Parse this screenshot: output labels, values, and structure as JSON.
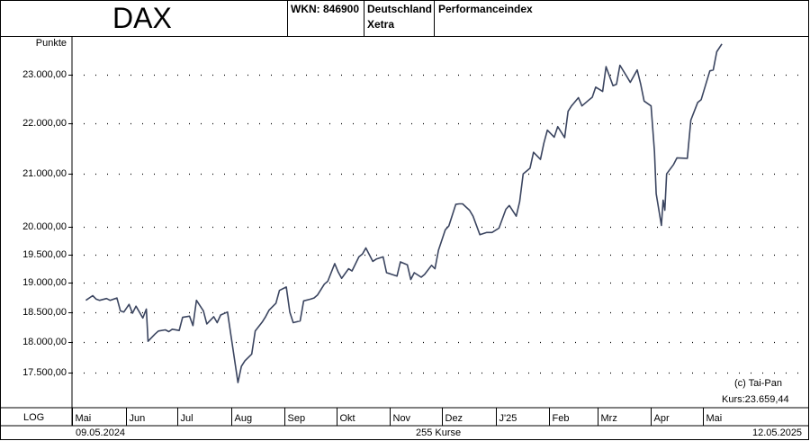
{
  "header": {
    "title": "DAX",
    "wkn": "WKN: 846900",
    "country": "Deutschland",
    "exchange": "Xetra",
    "index_type": "Performanceindex"
  },
  "chart_data": {
    "type": "line",
    "ylabel": "Punkte",
    "y_scale": "log",
    "ylim": [
      17250,
      23800
    ],
    "y_ticks": [
      17500,
      18000,
      18500,
      19000,
      19500,
      20000,
      21000,
      22000,
      23000
    ],
    "y_tick_labels": [
      "17.500,00",
      "18.000,00",
      "18.500,00",
      "19.000,00",
      "19.500,00",
      "20.000,00",
      "21.000,00",
      "22.000,00",
      "23.000,00"
    ],
    "x_ticks": [
      "Mai",
      "Jun",
      "Jul",
      "Aug",
      "Sep",
      "Okt",
      "Nov",
      "Dez",
      "J'25",
      "Feb",
      "Mrz",
      "Apr",
      "Mai"
    ],
    "x_tick_dates": [
      "2024-05-01",
      "2024-06-01",
      "2024-07-01",
      "2024-08-01",
      "2024-09-01",
      "2024-10-01",
      "2024-11-01",
      "2024-12-01",
      "2025-01-01",
      "2025-02-01",
      "2025-03-01",
      "2025-04-01",
      "2025-05-01"
    ],
    "xlim": [
      "2024-05-09",
      "2025-05-12"
    ],
    "grid": "dotted",
    "series": [
      {
        "color": "#3b4560",
        "x": [
          "2024-05-09",
          "2024-05-13",
          "2024-05-15",
          "2024-05-17",
          "2024-05-21",
          "2024-05-23",
          "2024-05-27",
          "2024-05-29",
          "2024-05-31",
          "2024-06-03",
          "2024-06-05",
          "2024-06-07",
          "2024-06-11",
          "2024-06-13",
          "2024-06-14",
          "2024-06-18",
          "2024-06-20",
          "2024-06-24",
          "2024-06-26",
          "2024-06-28",
          "2024-07-02",
          "2024-07-04",
          "2024-07-08",
          "2024-07-10",
          "2024-07-12",
          "2024-07-16",
          "2024-07-18",
          "2024-07-22",
          "2024-07-24",
          "2024-07-26",
          "2024-07-30",
          "2024-08-01",
          "2024-08-05",
          "2024-08-07",
          "2024-08-09",
          "2024-08-13",
          "2024-08-15",
          "2024-08-19",
          "2024-08-21",
          "2024-08-23",
          "2024-08-27",
          "2024-08-29",
          "2024-09-02",
          "2024-09-04",
          "2024-09-06",
          "2024-09-10",
          "2024-09-12",
          "2024-09-16",
          "2024-09-18",
          "2024-09-20",
          "2024-09-24",
          "2024-09-26",
          "2024-09-30",
          "2024-10-02",
          "2024-10-04",
          "2024-10-08",
          "2024-10-10",
          "2024-10-14",
          "2024-10-16",
          "2024-10-18",
          "2024-10-22",
          "2024-10-24",
          "2024-10-28",
          "2024-10-30",
          "2024-11-01",
          "2024-11-05",
          "2024-11-07",
          "2024-11-11",
          "2024-11-13",
          "2024-11-15",
          "2024-11-19",
          "2024-11-21",
          "2024-11-25",
          "2024-11-27",
          "2024-11-29",
          "2024-12-03",
          "2024-12-05",
          "2024-12-09",
          "2024-12-11",
          "2024-12-13",
          "2024-12-17",
          "2024-12-19",
          "2024-12-23",
          "2024-12-27",
          "2024-12-30",
          "2025-01-03",
          "2025-01-07",
          "2025-01-09",
          "2025-01-13",
          "2025-01-15",
          "2025-01-17",
          "2025-01-21",
          "2025-01-23",
          "2025-01-27",
          "2025-01-29",
          "2025-01-31",
          "2025-02-04",
          "2025-02-06",
          "2025-02-10",
          "2025-02-12",
          "2025-02-14",
          "2025-02-18",
          "2025-02-20",
          "2025-02-24",
          "2025-02-26",
          "2025-02-28",
          "2025-03-04",
          "2025-03-06",
          "2025-03-10",
          "2025-03-12",
          "2025-03-14",
          "2025-03-18",
          "2025-03-20",
          "2025-03-24",
          "2025-03-26",
          "2025-03-28",
          "2025-04-01",
          "2025-04-03",
          "2025-04-04",
          "2025-04-07",
          "2025-04-08",
          "2025-04-09",
          "2025-04-10",
          "2025-04-14",
          "2025-04-16",
          "2025-04-22",
          "2025-04-24",
          "2025-04-28",
          "2025-04-30",
          "2025-05-05",
          "2025-05-07",
          "2025-05-09",
          "2025-05-12"
        ],
        "y": [
          18700,
          18780,
          18720,
          18700,
          18730,
          18700,
          18740,
          18520,
          18500,
          18630,
          18480,
          18600,
          18400,
          18550,
          18010,
          18130,
          18180,
          18200,
          18170,
          18210,
          18190,
          18410,
          18430,
          18270,
          18700,
          18520,
          18300,
          18420,
          18320,
          18450,
          18500,
          18100,
          17340,
          17600,
          17690,
          17800,
          18180,
          18330,
          18420,
          18530,
          18650,
          18870,
          18930,
          18500,
          18320,
          18350,
          18690,
          18720,
          18740,
          18790,
          18980,
          19030,
          19340,
          19190,
          19080,
          19250,
          19210,
          19460,
          19510,
          19620,
          19380,
          19420,
          19460,
          19180,
          19160,
          19120,
          19370,
          19320,
          19060,
          19180,
          19100,
          19150,
          19310,
          19250,
          19580,
          19950,
          20020,
          20420,
          20430,
          20430,
          20310,
          20200,
          19860,
          19900,
          19900,
          19980,
          20330,
          20400,
          20200,
          20470,
          21000,
          21110,
          21420,
          21280,
          21600,
          21860,
          21720,
          21930,
          21710,
          22240,
          22350,
          22520,
          22350,
          22470,
          22530,
          22740,
          22650,
          23170,
          22770,
          22800,
          23200,
          22960,
          22840,
          23100,
          22800,
          22450,
          22350,
          21430,
          20620,
          20030,
          20500,
          20310,
          21000,
          21180,
          21310,
          21300,
          22060,
          22420,
          22480,
          23080,
          23100,
          23490,
          23659.44
        ]
      }
    ],
    "annotations": {
      "copyright": "(c) Tai-Pan",
      "kurs": "Kurs:23.659,44"
    }
  },
  "footer": {
    "scale": "LOG",
    "start_date": "09.05.2024",
    "count": "255 Kurse",
    "end_date": "12.05.2025"
  }
}
